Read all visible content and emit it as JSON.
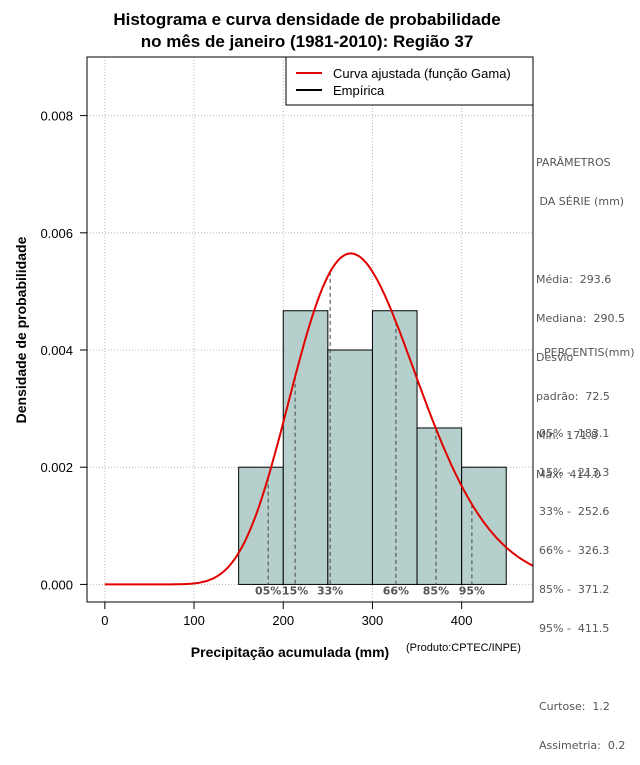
{
  "chart_data": {
    "type": "bar",
    "title_line1": "Histograma e curva densidade de probabilidade",
    "title_line2": "no mês de janeiro (1981-2010): Região 37",
    "xlabel": "Precipitação acumulada (mm)",
    "ylabel": "Densidade de probabilidade",
    "credit": "(Produto:CPTEC/INPE)",
    "xlim": [
      -20,
      480
    ],
    "ylim": [
      -0.0003,
      0.009
    ],
    "x_ticks": [
      0,
      100,
      200,
      300,
      400
    ],
    "x_tick_labels": [
      "0",
      "100",
      "200",
      "300",
      "400"
    ],
    "y_ticks": [
      0,
      0.002,
      0.004,
      0.006,
      0.008
    ],
    "y_tick_labels": [
      "0.000",
      "0.002",
      "0.004",
      "0.006",
      "0.008"
    ],
    "grid": true,
    "bins": [
      {
        "x0": 150,
        "x1": 200,
        "density": 0.002
      },
      {
        "x0": 200,
        "x1": 250,
        "density": 0.00467
      },
      {
        "x0": 250,
        "x1": 300,
        "density": 0.004
      },
      {
        "x0": 300,
        "x1": 350,
        "density": 0.00467
      },
      {
        "x0": 350,
        "x1": 400,
        "density": 0.00267
      },
      {
        "x0": 400,
        "x1": 450,
        "density": 0.002
      }
    ],
    "gamma_fit": {
      "mean": 293.6,
      "sd": 72.5
    },
    "legend": [
      {
        "label": "Curva ajustada (função Gama)",
        "color": "#e00000"
      },
      {
        "label": "Empírica",
        "color": "#000000"
      }
    ],
    "percentile_marks": [
      {
        "label": "05%",
        "value": 183.1
      },
      {
        "label": "15%",
        "value": 213.3
      },
      {
        "label": "33%",
        "value": 252.6
      },
      {
        "label": "66%",
        "value": 326.3
      },
      {
        "label": "85%",
        "value": 371.2
      },
      {
        "label": "95%",
        "value": 411.5
      }
    ],
    "colors": {
      "bar_fill": "#b5cfcc",
      "curve": "#e00000",
      "grid": "#b8b8b8",
      "percentile_line": "#444444"
    }
  },
  "params_panel": {
    "header1": "PARÂMETROS",
    "header2": " DA SÉRIE (mm)",
    "media": "Média:  293.6",
    "mediana": "Mediana:  290.5",
    "desvio1": "Desvio",
    "desvio2": "padrão:  72.5",
    "min": "Mín:  171.8",
    "max": "Máx:  414.0"
  },
  "percentis_panel": {
    "header": "PERCENTIS(mm)",
    "p05": "05% -  183.1",
    "p15": "15% -  213.3",
    "p33": "33% -  252.6",
    "p66": "66% -  326.3",
    "p85": "85% -  371.2",
    "p95": "95% -  411.5",
    "curtose": "Curtose:  1.2",
    "assimetria": "Assimetria:  0.2"
  }
}
